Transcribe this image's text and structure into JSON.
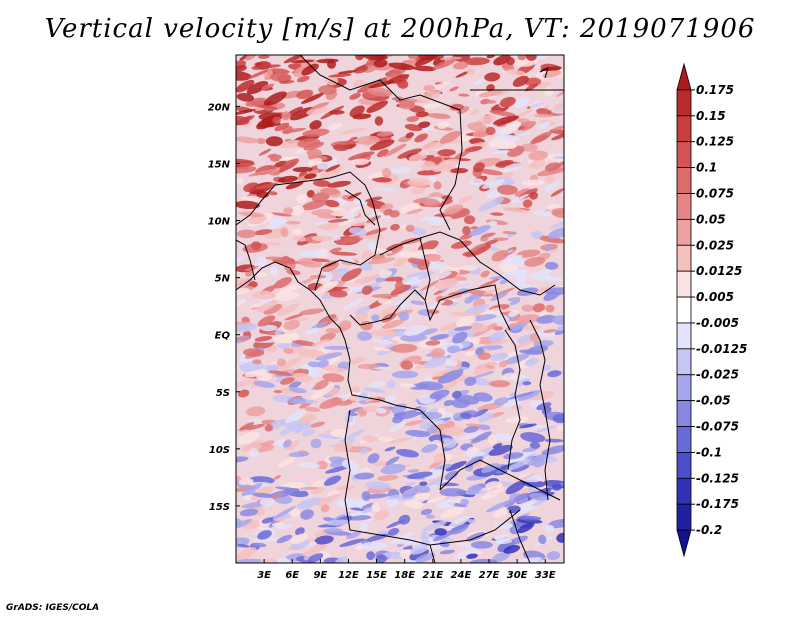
{
  "title": "Vertical velocity [m/s] at 200hPa, VT: 2019071906",
  "credit": "GrADS: IGES/COLA",
  "map": {
    "lat_ticks": [
      "20N",
      "15N",
      "10N",
      "5N",
      "EQ",
      "5S",
      "10S",
      "15S"
    ],
    "lon_ticks": [
      "3E",
      "6E",
      "9E",
      "12E",
      "15E",
      "18E",
      "21E",
      "24E",
      "27E",
      "30E",
      "33E"
    ],
    "lat_range": [
      -20,
      24.5
    ],
    "lon_range": [
      0,
      35
    ]
  },
  "colorbar": {
    "levels": [
      "0.175",
      "0.15",
      "0.125",
      "0.1",
      "0.075",
      "0.05",
      "0.025",
      "0.0125",
      "0.005",
      "-0.005",
      "-0.0125",
      "-0.025",
      "-0.05",
      "-0.075",
      "-0.1",
      "-0.125",
      "-0.175",
      "-0.2"
    ],
    "colors": [
      "#ae1b1b",
      "#bc2b2b",
      "#c93e3e",
      "#d35454",
      "#dc6b6b",
      "#e48686",
      "#eda0a0",
      "#f5c0c0",
      "#fce3e3",
      "#ffffff",
      "#e3e3fb",
      "#c6c6f4",
      "#a6a6ec",
      "#8888e3",
      "#6a6ad8",
      "#4e4ecb",
      "#3232b8",
      "#2020a4",
      "#141490"
    ]
  }
}
